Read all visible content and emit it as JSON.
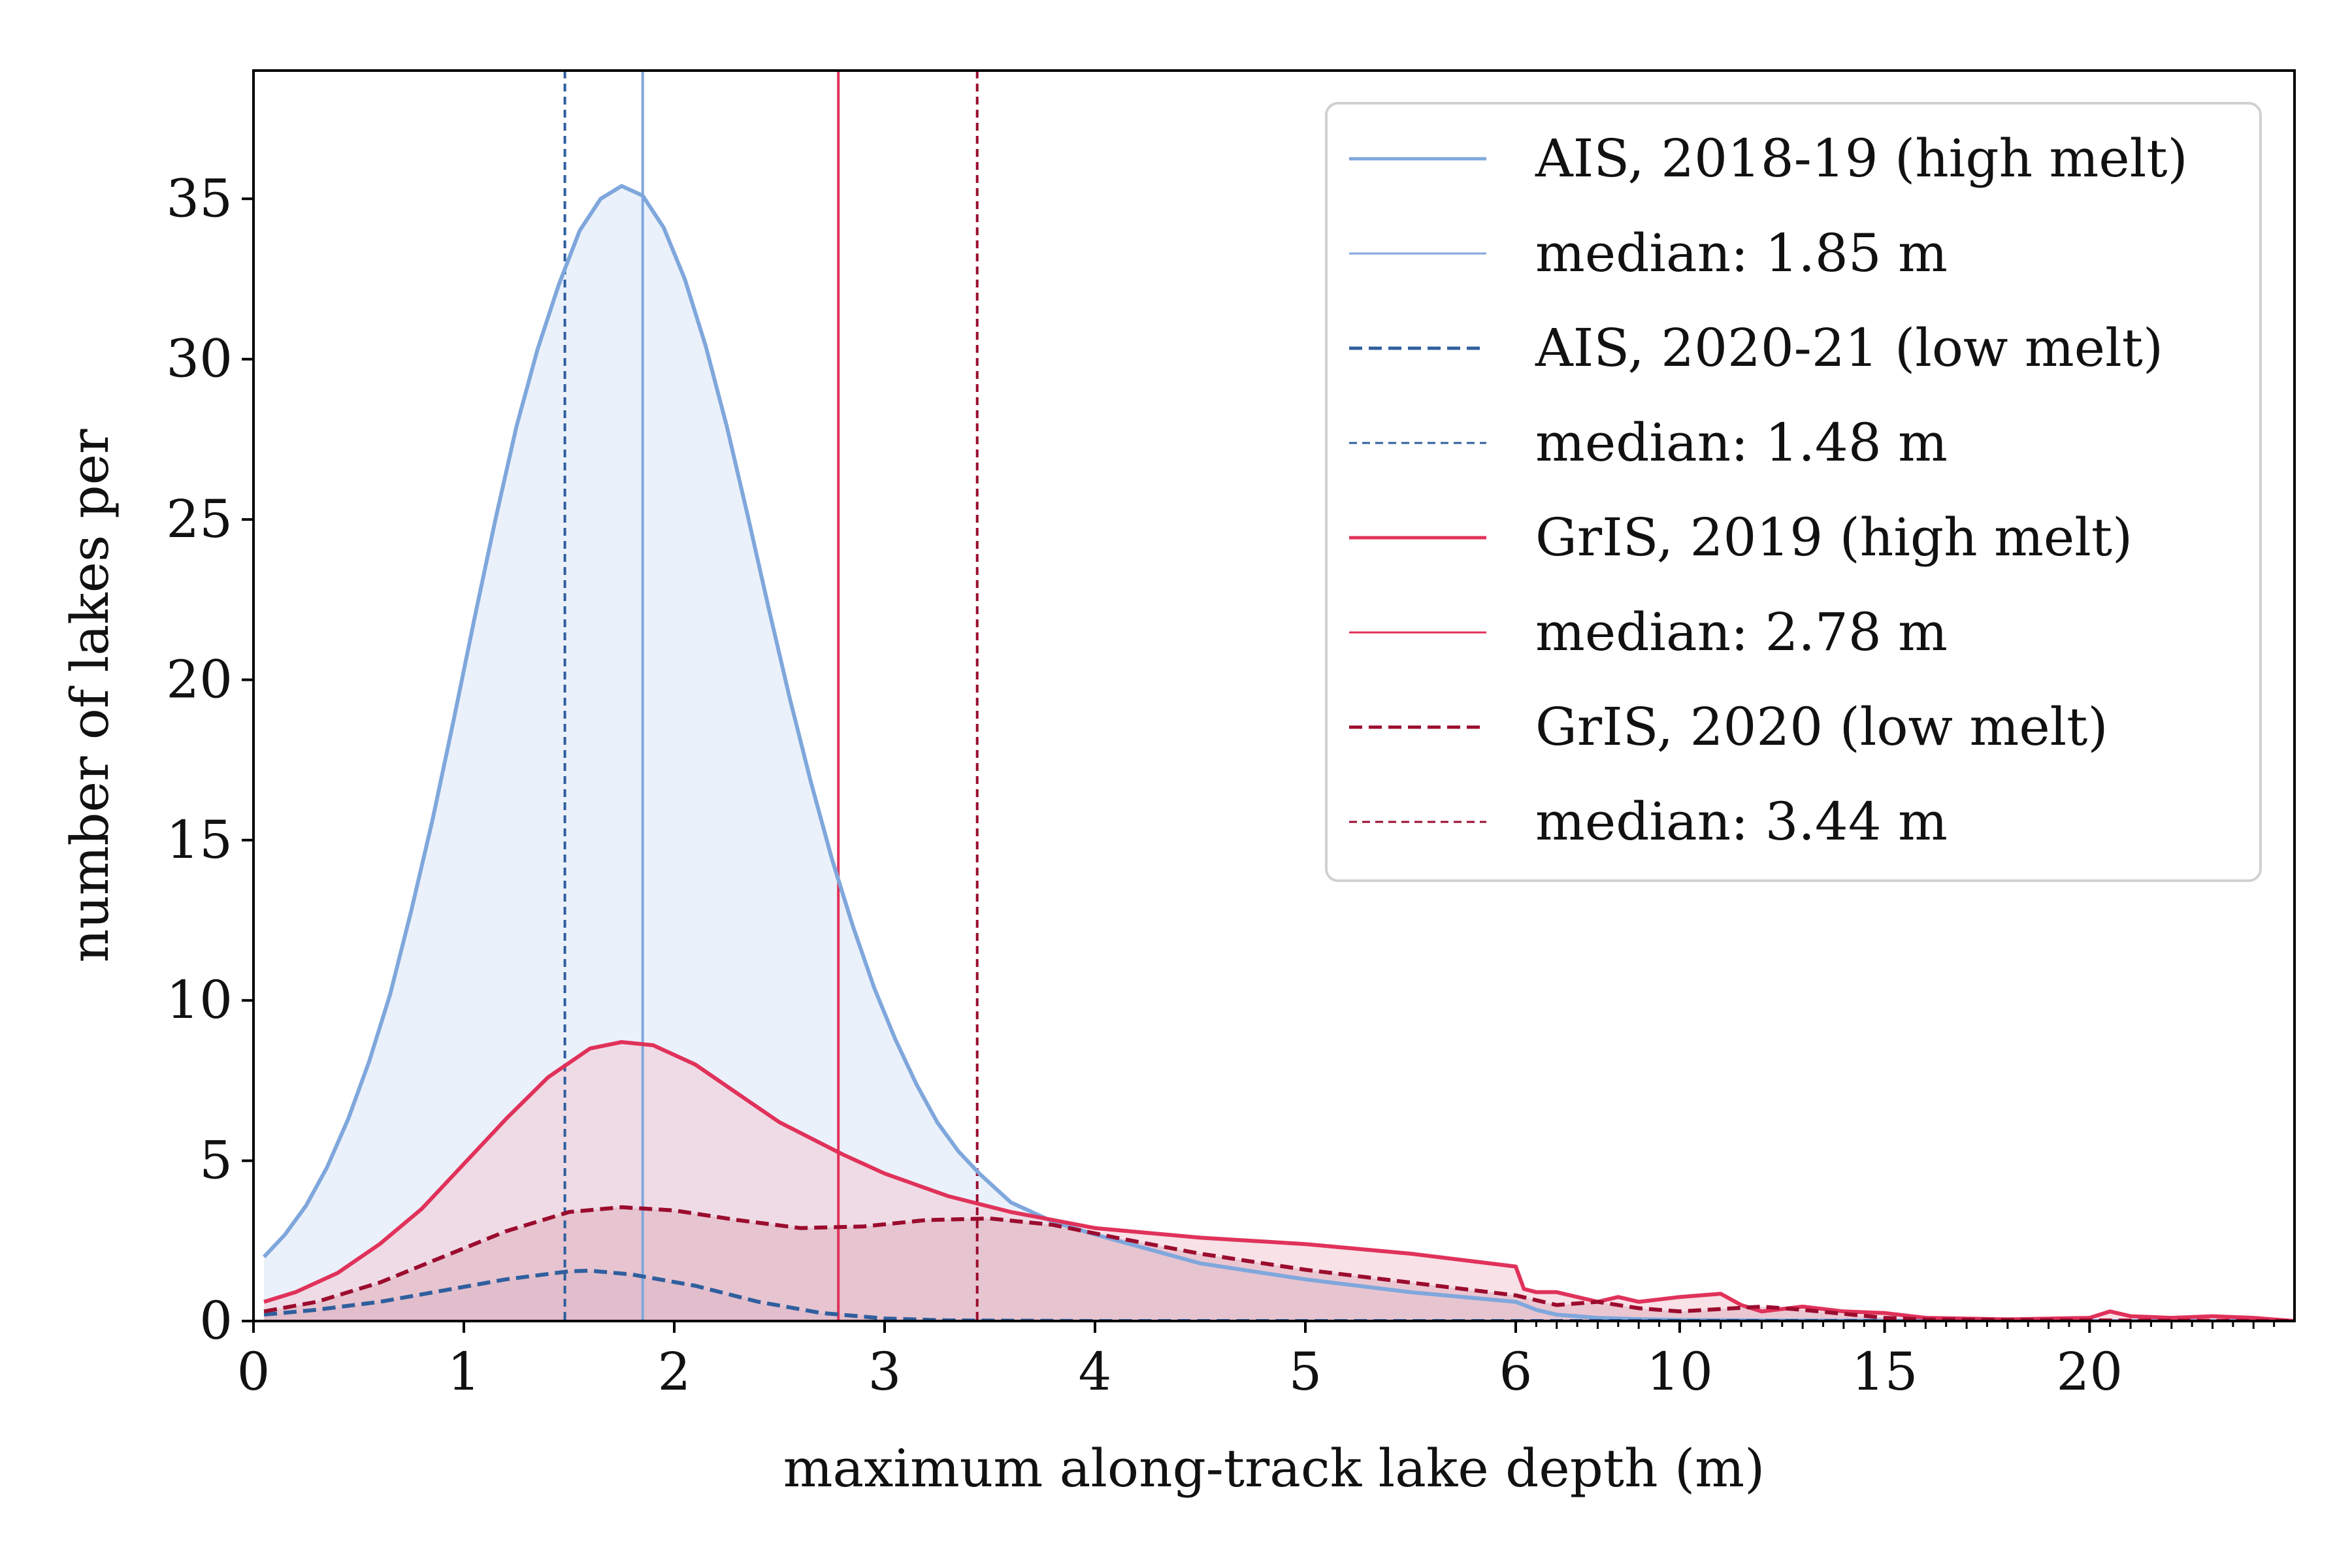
{
  "chart_data": {
    "type": "line",
    "title": "",
    "xlabel": "maximum along-track lake depth (m)",
    "ylabel": "number of lakes per",
    "x_scale": "piecewise: linear 0-6, then compressed 6-25",
    "xlim": [
      0,
      25
    ],
    "ylim": [
      0,
      39
    ],
    "xticks": [
      "0",
      "1",
      "2",
      "3",
      "4",
      "5",
      "6",
      "10",
      "15",
      "20"
    ],
    "yticks": [
      "0",
      "5",
      "10",
      "15",
      "20",
      "25",
      "30",
      "35"
    ],
    "legend_position": "top-right",
    "series": [
      {
        "name": "AIS, 2018-19 (high melt)",
        "color": "#7fa7dc",
        "style": "solid",
        "fill": "#e9f0fa",
        "x": [
          0.05,
          0.15,
          0.25,
          0.35,
          0.45,
          0.55,
          0.65,
          0.75,
          0.85,
          0.95,
          1.05,
          1.15,
          1.25,
          1.35,
          1.45,
          1.55,
          1.65,
          1.75,
          1.85,
          1.95,
          2.05,
          2.15,
          2.25,
          2.35,
          2.45,
          2.55,
          2.65,
          2.75,
          2.85,
          2.95,
          3.05,
          3.15,
          3.25,
          3.35,
          3.45,
          3.6,
          3.8,
          4.0,
          4.5,
          5.0,
          5.5,
          6.0,
          6.5,
          7,
          8,
          9,
          10,
          12,
          15,
          20,
          25
        ],
        "values": [
          2.0,
          2.7,
          3.6,
          4.8,
          6.3,
          8.1,
          10.2,
          12.8,
          15.6,
          18.7,
          21.9,
          25.0,
          27.9,
          30.3,
          32.3,
          34.0,
          35.0,
          35.4,
          35.1,
          34.1,
          32.5,
          30.4,
          27.9,
          25.1,
          22.2,
          19.4,
          16.8,
          14.4,
          12.3,
          10.4,
          8.8,
          7.4,
          6.2,
          5.3,
          4.6,
          3.7,
          3.1,
          2.7,
          1.8,
          1.3,
          0.9,
          0.6,
          0.35,
          0.2,
          0.1,
          0.06,
          0.03,
          0.02,
          0.01,
          0,
          0
        ]
      },
      {
        "name": "AIS, 2020-21 (low melt)",
        "color": "#2f5f9e",
        "style": "dashed",
        "fill": "#c8b6c8",
        "x": [
          0.05,
          0.3,
          0.6,
          0.9,
          1.2,
          1.5,
          1.6,
          1.8,
          2.1,
          2.4,
          2.7,
          3.0,
          3.3,
          3.6,
          4,
          5,
          6,
          10,
          15,
          20,
          25
        ],
        "values": [
          0.2,
          0.35,
          0.6,
          0.95,
          1.3,
          1.55,
          1.57,
          1.45,
          1.1,
          0.6,
          0.25,
          0.08,
          0.02,
          0.01,
          0,
          0,
          0,
          0,
          0,
          0,
          0
        ]
      },
      {
        "name": "GrIS, 2019 (high melt)",
        "color": "#e0325a",
        "style": "solid",
        "fill": "#f2c8d4",
        "x": [
          0.05,
          0.2,
          0.4,
          0.6,
          0.8,
          1.0,
          1.2,
          1.4,
          1.6,
          1.75,
          1.9,
          2.1,
          2.3,
          2.5,
          2.8,
          3.0,
          3.3,
          3.6,
          4.0,
          4.5,
          5.0,
          5.5,
          6.0,
          6.2,
          6.5,
          7,
          8,
          8.5,
          9,
          10,
          11,
          11.5,
          12,
          13,
          14,
          15,
          16,
          18,
          20,
          20.5,
          21,
          22,
          23,
          24,
          25
        ],
        "values": [
          0.6,
          0.9,
          1.5,
          2.4,
          3.5,
          4.9,
          6.3,
          7.6,
          8.5,
          8.7,
          8.6,
          8.0,
          7.1,
          6.2,
          5.2,
          4.6,
          3.9,
          3.4,
          2.9,
          2.6,
          2.4,
          2.1,
          1.7,
          1.0,
          0.9,
          0.9,
          0.6,
          0.75,
          0.6,
          0.75,
          0.85,
          0.5,
          0.3,
          0.45,
          0.3,
          0.25,
          0.1,
          0.05,
          0.1,
          0.3,
          0.15,
          0.1,
          0.15,
          0.1,
          0
        ]
      },
      {
        "name": "GrIS, 2020 (low melt)",
        "color": "#9b0c2e",
        "style": "dashed",
        "fill": "#deb1c0",
        "x": [
          0.05,
          0.3,
          0.6,
          0.9,
          1.2,
          1.5,
          1.75,
          2.0,
          2.3,
          2.6,
          2.9,
          3.2,
          3.5,
          3.8,
          4.1,
          4.5,
          5.0,
          5.5,
          6.0,
          7,
          8,
          9,
          10,
          12,
          13,
          15,
          16,
          20,
          25
        ],
        "values": [
          0.3,
          0.6,
          1.2,
          2.0,
          2.8,
          3.4,
          3.55,
          3.45,
          3.15,
          2.9,
          2.95,
          3.15,
          3.2,
          3.0,
          2.6,
          2.1,
          1.6,
          1.2,
          0.8,
          0.5,
          0.6,
          0.4,
          0.3,
          0.45,
          0.35,
          0.1,
          0.05,
          0.02,
          0
        ]
      }
    ],
    "medians": [
      {
        "label": "median: 1.85 m",
        "value": 1.85,
        "color": "#7fa7dc",
        "style": "solid"
      },
      {
        "label": "median: 1.48 m",
        "value": 1.48,
        "color": "#2f5f9e",
        "style": "dashed"
      },
      {
        "label": "median: 2.78 m",
        "value": 2.78,
        "color": "#e0325a",
        "style": "solid"
      },
      {
        "label": "median: 3.44 m",
        "value": 3.44,
        "color": "#9b0c2e",
        "style": "dashed"
      }
    ]
  }
}
